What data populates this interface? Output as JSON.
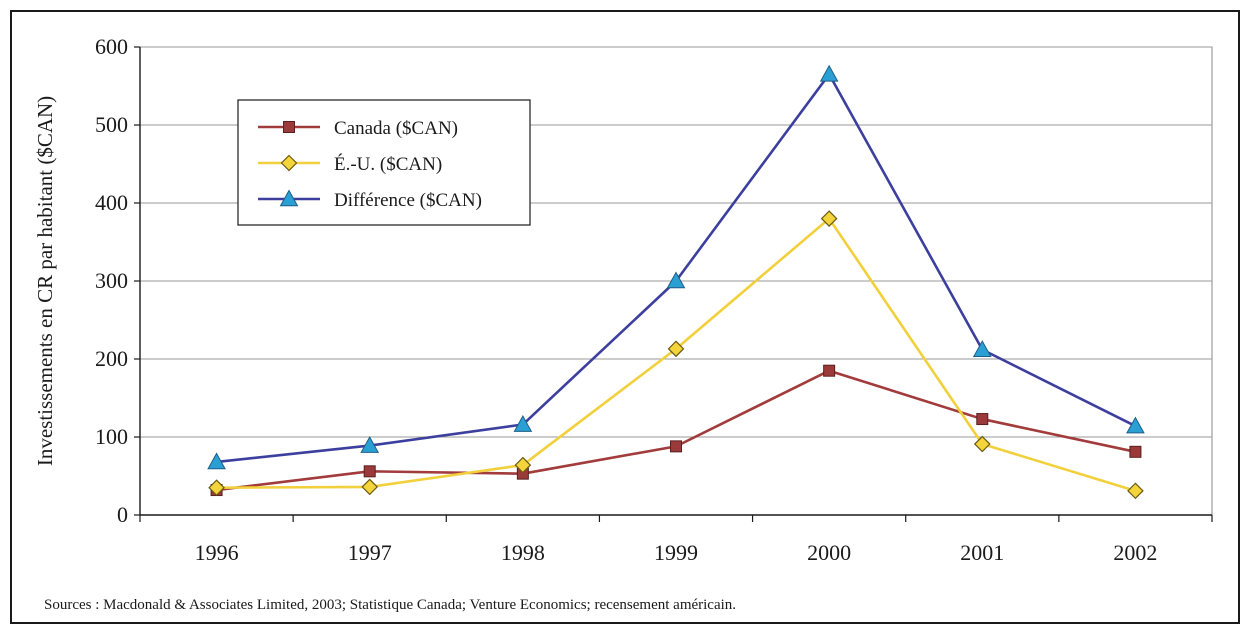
{
  "chart_data": {
    "type": "line",
    "title": "",
    "xlabel": "",
    "ylabel": "Investissements en CR par habitant ($CAN)",
    "categories": [
      "1996",
      "1997",
      "1998",
      "1999",
      "2000",
      "2001",
      "2002"
    ],
    "y_ticks": [
      "0",
      "100",
      "200",
      "300",
      "400",
      "500",
      "600"
    ],
    "ylim": [
      0,
      600
    ],
    "grid": true,
    "legend_position": "top-left",
    "series": [
      {
        "name": "Canada ($CAN)",
        "marker": "square",
        "color": "#a23b3b",
        "values": [
          32,
          56,
          53,
          88,
          185,
          123,
          81
        ]
      },
      {
        "name": "É.-U. ($CAN)",
        "marker": "diamond",
        "color": "#f2d03b",
        "values": [
          35,
          36,
          64,
          213,
          380,
          91,
          31
        ]
      },
      {
        "name": "Différence ($CAN)",
        "marker": "triangle",
        "color": "#3c3f9e",
        "values": [
          68,
          89,
          116,
          300,
          565,
          212,
          114
        ]
      }
    ],
    "marker_fills": {
      "square": "#9b3a3a",
      "diamond": "#f3d43a",
      "triangle": "#2a9fd4"
    },
    "source": "Sources : Macdonald & Associates Limited, 2003; Statistique Canada; Venture Economics; recensement américain."
  }
}
